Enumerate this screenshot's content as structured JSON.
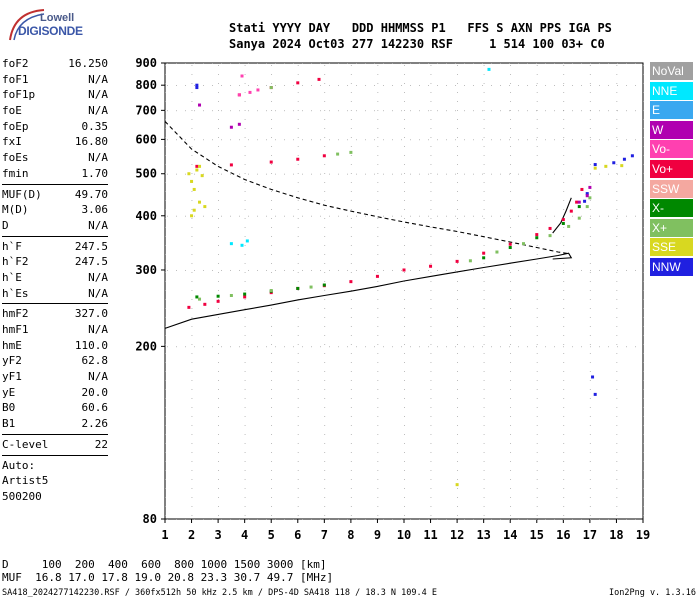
{
  "logo": {
    "line1": "Lowell",
    "line2": "DIGISONDE"
  },
  "header": {
    "columns": "Stati YYYY DAY   DDD HHMMSS P1   FFS S AXN PPS IGA PS",
    "values": "Sanya 2024 Oct03 277 142230 RSF     1 514 100 03+ C0"
  },
  "params_a": [
    {
      "k": "foF2",
      "v": "16.250"
    },
    {
      "k": "foF1",
      "v": "N/A"
    },
    {
      "k": "foF1p",
      "v": "N/A"
    },
    {
      "k": "foE",
      "v": "N/A"
    },
    {
      "k": "foEp",
      "v": "0.35"
    },
    {
      "k": "fxI",
      "v": "16.80"
    },
    {
      "k": "foEs",
      "v": "N/A"
    },
    {
      "k": "fmin",
      "v": "1.70"
    }
  ],
  "params_b": [
    {
      "k": "MUF(D)",
      "v": "49.70"
    },
    {
      "k": "M(D)",
      "v": "3.06"
    },
    {
      "k": "D",
      "v": "N/A"
    }
  ],
  "params_c": [
    {
      "k": "h`F",
      "v": "247.5"
    },
    {
      "k": "h`F2",
      "v": "247.5"
    },
    {
      "k": "h`E",
      "v": "N/A"
    },
    {
      "k": "h`Es",
      "v": "N/A"
    }
  ],
  "params_d": [
    {
      "k": "hmF2",
      "v": "327.0"
    },
    {
      "k": "hmF1",
      "v": "N/A"
    },
    {
      "k": "hmE",
      "v": "110.0"
    },
    {
      "k": "yF2",
      "v": "62.8"
    },
    {
      "k": "yF1",
      "v": "N/A"
    },
    {
      "k": "yE",
      "v": "20.0"
    },
    {
      "k": "B0",
      "v": "60.6"
    },
    {
      "k": "B1",
      "v": "2.26"
    }
  ],
  "params_e": [
    {
      "k": "C-level",
      "v": "22"
    }
  ],
  "auto": {
    "label": "Auto:",
    "artist": "Artist5",
    "code": "500200"
  },
  "legend": [
    {
      "label": "NoVal",
      "color": "#a0a0a0"
    },
    {
      "label": "NNE",
      "color": "#00e8ff"
    },
    {
      "label": "E",
      "color": "#3aa8f0"
    },
    {
      "label": "W",
      "color": "#b000b0"
    },
    {
      "label": "Vo-",
      "color": "#ff40b0"
    },
    {
      "label": "Vo+",
      "color": "#f00040"
    },
    {
      "label": "SSW",
      "color": "#f4a8a0"
    },
    {
      "label": "X-",
      "color": "#008800"
    },
    {
      "label": "X+",
      "color": "#80c060"
    },
    {
      "label": "SSE",
      "color": "#d8d820"
    },
    {
      "label": "NNW",
      "color": "#2020e0"
    }
  ],
  "footer": {
    "d_row": "D     100  200  400  600  800 1000 1500 3000 [km]",
    "muf_row": "MUF  16.8 17.0 17.8 19.0 20.8 23.3 30.7 49.7 [MHz]"
  },
  "source": "SA418_2024277142230.RSF / 360fx512h 50 kHz 2.5 km / DPS-4D SA418 118 / 18.3 N 109.4 E",
  "version": "Ion2Png v. 1.3.16",
  "chart_data": {
    "type": "scatter",
    "xlim": [
      1,
      19
    ],
    "ylim": [
      80,
      900
    ],
    "x_ticks": [
      1,
      2,
      3,
      4,
      5,
      6,
      7,
      8,
      9,
      10,
      11,
      12,
      13,
      14,
      15,
      16,
      17,
      18,
      19
    ],
    "y_ticks": [
      80,
      200,
      300,
      400,
      500,
      600,
      700,
      800,
      900
    ],
    "y_scale": "log",
    "series": [
      {
        "name": "Vo+",
        "color": "#f00040",
        "points": [
          [
            1.9,
            246
          ],
          [
            2.5,
            250
          ],
          [
            3,
            254
          ],
          [
            4,
            260
          ],
          [
            5,
            266
          ],
          [
            6,
            272
          ],
          [
            7,
            276
          ],
          [
            8,
            282
          ],
          [
            9,
            290
          ],
          [
            10,
            300
          ],
          [
            11,
            306
          ],
          [
            12,
            314
          ],
          [
            13,
            328
          ],
          [
            14,
            344
          ],
          [
            15,
            362
          ],
          [
            15.5,
            374
          ],
          [
            16,
            392
          ],
          [
            16.3,
            410
          ],
          [
            16.5,
            430
          ],
          [
            16.7,
            460
          ],
          [
            2.2,
            520
          ],
          [
            3.5,
            524
          ],
          [
            5,
            532
          ],
          [
            6,
            540
          ],
          [
            7,
            550
          ],
          [
            3.8,
            760
          ],
          [
            5,
            790
          ],
          [
            6,
            810
          ],
          [
            6.8,
            825
          ]
        ]
      },
      {
        "name": "X-",
        "color": "#008800",
        "points": [
          [
            2.2,
            260
          ],
          [
            3,
            261
          ],
          [
            4,
            264
          ],
          [
            5,
            268
          ],
          [
            6,
            272
          ],
          [
            7,
            277
          ],
          [
            13,
            320
          ],
          [
            14,
            338
          ],
          [
            15,
            356
          ],
          [
            16,
            384
          ],
          [
            16.6,
            420
          ]
        ]
      },
      {
        "name": "X+",
        "color": "#80c060",
        "points": [
          [
            2.3,
            257
          ],
          [
            3.5,
            262
          ],
          [
            5,
            269
          ],
          [
            6.5,
            274
          ],
          [
            12.5,
            315
          ],
          [
            13.5,
            330
          ],
          [
            14.5,
            345
          ],
          [
            15.5,
            360
          ],
          [
            16.2,
            378
          ],
          [
            16.6,
            395
          ],
          [
            16.9,
            420
          ],
          [
            17,
            440
          ],
          [
            5,
            790
          ],
          [
            7.5,
            555
          ],
          [
            8,
            560
          ]
        ]
      },
      {
        "name": "SSE",
        "color": "#d8d820",
        "points": [
          [
            2,
            400
          ],
          [
            2.3,
            430
          ],
          [
            2.1,
            460
          ],
          [
            2.4,
            495
          ],
          [
            2.2,
            510
          ],
          [
            2,
            480
          ],
          [
            2.5,
            420
          ],
          [
            2.1,
            412
          ],
          [
            2.3,
            520
          ],
          [
            1.9,
            500
          ],
          [
            17.2,
            515
          ],
          [
            17.6,
            520
          ],
          [
            18.2,
            522
          ],
          [
            12,
            96
          ]
        ]
      },
      {
        "name": "NNW",
        "color": "#2020e0",
        "points": [
          [
            2.2,
            790
          ],
          [
            2.2,
            800
          ],
          [
            17.9,
            530
          ],
          [
            18.3,
            540
          ],
          [
            18.6,
            550
          ],
          [
            17.2,
            525
          ],
          [
            17.1,
            170
          ],
          [
            17.2,
            155
          ],
          [
            16.8,
            432
          ],
          [
            16.9,
            450
          ]
        ]
      },
      {
        "name": "W",
        "color": "#b000b0",
        "points": [
          [
            16.6,
            430
          ],
          [
            16.9,
            445
          ],
          [
            17,
            465
          ],
          [
            2.3,
            720
          ],
          [
            3.5,
            640
          ],
          [
            3.8,
            650
          ]
        ]
      },
      {
        "name": "NNE",
        "color": "#00e8ff",
        "points": [
          [
            3.5,
            345
          ],
          [
            3.9,
            342
          ],
          [
            4.1,
            350
          ],
          [
            13.2,
            870
          ]
        ]
      },
      {
        "name": "Vo-",
        "color": "#ff40b0",
        "points": [
          [
            4.2,
            770
          ],
          [
            4.5,
            780
          ],
          [
            3.9,
            840
          ],
          [
            3.8,
            760
          ]
        ]
      }
    ],
    "curves": [
      {
        "name": "solid",
        "points": [
          [
            1,
            220
          ],
          [
            2,
            231
          ],
          [
            3,
            237
          ],
          [
            4,
            243
          ],
          [
            5,
            249
          ],
          [
            6,
            256
          ],
          [
            7,
            262
          ],
          [
            8,
            268
          ],
          [
            9,
            275
          ],
          [
            10,
            283
          ],
          [
            11,
            290
          ],
          [
            12,
            297
          ],
          [
            13,
            304
          ],
          [
            14,
            311
          ],
          [
            15,
            318
          ],
          [
            15.8,
            324
          ],
          [
            16.2,
            328
          ],
          [
            16.3,
            320
          ],
          [
            15.6,
            318
          ]
        ]
      },
      {
        "name": "solid-upper",
        "points": [
          [
            15.6,
            365
          ],
          [
            15.9,
            385
          ],
          [
            16.1,
            410
          ],
          [
            16.3,
            440
          ]
        ]
      },
      {
        "name": "dashed",
        "points": [
          [
            1,
            660
          ],
          [
            2,
            570
          ],
          [
            3,
            520
          ],
          [
            4,
            485
          ],
          [
            5,
            460
          ],
          [
            6,
            440
          ],
          [
            7,
            423
          ],
          [
            8,
            410
          ],
          [
            9,
            398
          ],
          [
            10,
            387
          ],
          [
            11,
            377
          ],
          [
            12,
            368
          ],
          [
            13,
            358
          ],
          [
            14,
            348
          ],
          [
            15,
            338
          ],
          [
            15.8,
            330
          ],
          [
            16.2,
            327
          ]
        ]
      }
    ]
  }
}
